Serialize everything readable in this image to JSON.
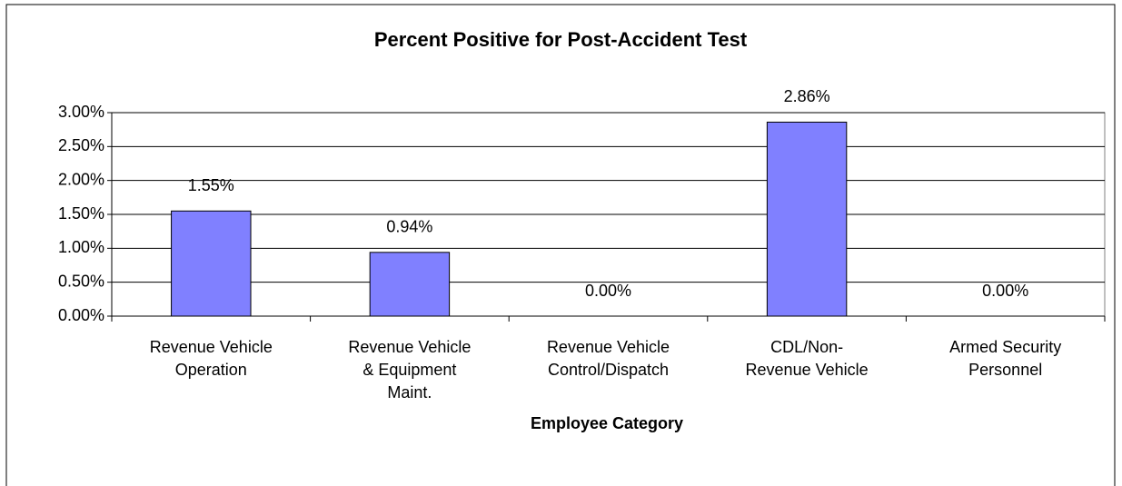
{
  "chart_data": {
    "type": "bar",
    "title": "Percent Positive for Post-Accident Test",
    "x_label": "Employee Category",
    "categories": [
      "Revenue Vehicle Operation",
      "Revenue Vehicle & Equipment Maint.",
      "Revenue Vehicle Control/Dispatch",
      "CDL/Non-Revenue Vehicle",
      "Armed Security Personnel"
    ],
    "values": [
      1.55,
      0.94,
      0,
      2.86,
      0
    ],
    "value_labels": [
      "1.55%",
      "0.94%",
      "0.00%",
      "2.86%",
      "0.00%"
    ],
    "color": "#8080ff",
    "ylim": [
      0,
      3
    ],
    "yticks": [
      {
        "value": 0,
        "label": "0.00%"
      },
      {
        "value": 0.5,
        "label": "0.50%"
      },
      {
        "value": 1,
        "label": "1.00%"
      },
      {
        "value": 1.5,
        "label": "1.50%"
      },
      {
        "value": 2,
        "label": "2.00%"
      },
      {
        "value": 2.5,
        "label": "2.50%"
      },
      {
        "value": 3,
        "label": "3.00%"
      }
    ],
    "grid": true
  }
}
